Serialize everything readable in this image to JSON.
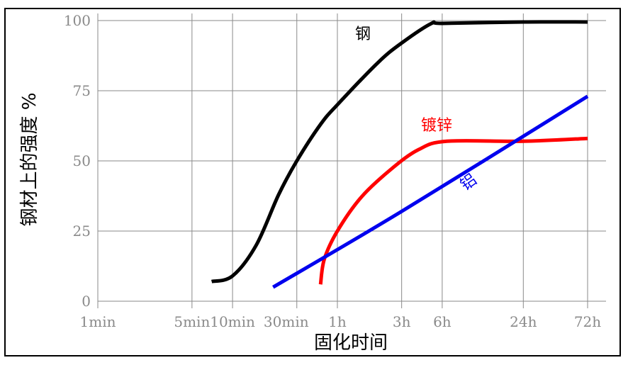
{
  "chart_data": {
    "type": "line",
    "xlabel": "固化时间",
    "ylabel": "钢材上的强度 %",
    "x_ticks": [
      "1min",
      "5min",
      "10min",
      "30min",
      "1h",
      "3h",
      "6h",
      "24h",
      "72h"
    ],
    "y_ticks": [
      0,
      25,
      50,
      75,
      100
    ],
    "ylim": [
      0,
      100
    ],
    "grid": true,
    "series": [
      {
        "name": "钢",
        "color": "#000000",
        "points": [
          [
            7,
            7
          ],
          [
            10,
            9
          ],
          [
            15,
            20
          ],
          [
            22,
            38
          ],
          [
            30,
            50
          ],
          [
            45,
            63
          ],
          [
            60,
            70
          ],
          [
            120,
            85
          ],
          [
            180,
            92
          ],
          [
            300,
            99
          ],
          [
            360,
            99
          ],
          [
            1440,
            99.5
          ],
          [
            4320,
            99.5
          ]
        ]
      },
      {
        "name": "镀锌",
        "color": "#ff0000",
        "points": [
          [
            45,
            6
          ],
          [
            48,
            15
          ],
          [
            60,
            25
          ],
          [
            90,
            37
          ],
          [
            150,
            47
          ],
          [
            240,
            54
          ],
          [
            390,
            57
          ],
          [
            1440,
            57
          ],
          [
            4320,
            58
          ]
        ]
      },
      {
        "name": "铝",
        "color": "#0000ee",
        "points": [
          [
            20,
            5
          ],
          [
            180,
            32
          ],
          [
            4320,
            73
          ]
        ]
      }
    ]
  }
}
